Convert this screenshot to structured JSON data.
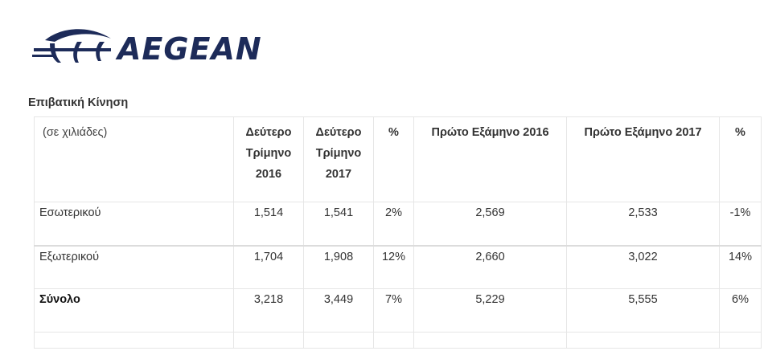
{
  "brand": {
    "name": "AEGEAN",
    "color": "#1d2b59"
  },
  "section_title": "Επιβατική Κίνηση",
  "table": {
    "header": [
      "(σε χιλιάδες)",
      "Δεύτερο Τρίμηνο 2016",
      "Δεύτερο Τρίμηνο 2017",
      "%",
      "Πρώτο Εξάμηνο 2016",
      "Πρώτο Εξάμηνο 2017",
      "%"
    ],
    "rows": [
      [
        "Εσωτερικού",
        "1,514",
        "1,541",
        "2%",
        "2,569",
        "2,533",
        "-1%"
      ],
      [
        "Εξωτερικού",
        "1,704",
        "1,908",
        "12%",
        "2,660",
        "3,022",
        "14%"
      ],
      [
        "Σύνολο",
        "3,218",
        "3,449",
        "7%",
        "5,229",
        "5,555",
        "6%"
      ]
    ]
  }
}
